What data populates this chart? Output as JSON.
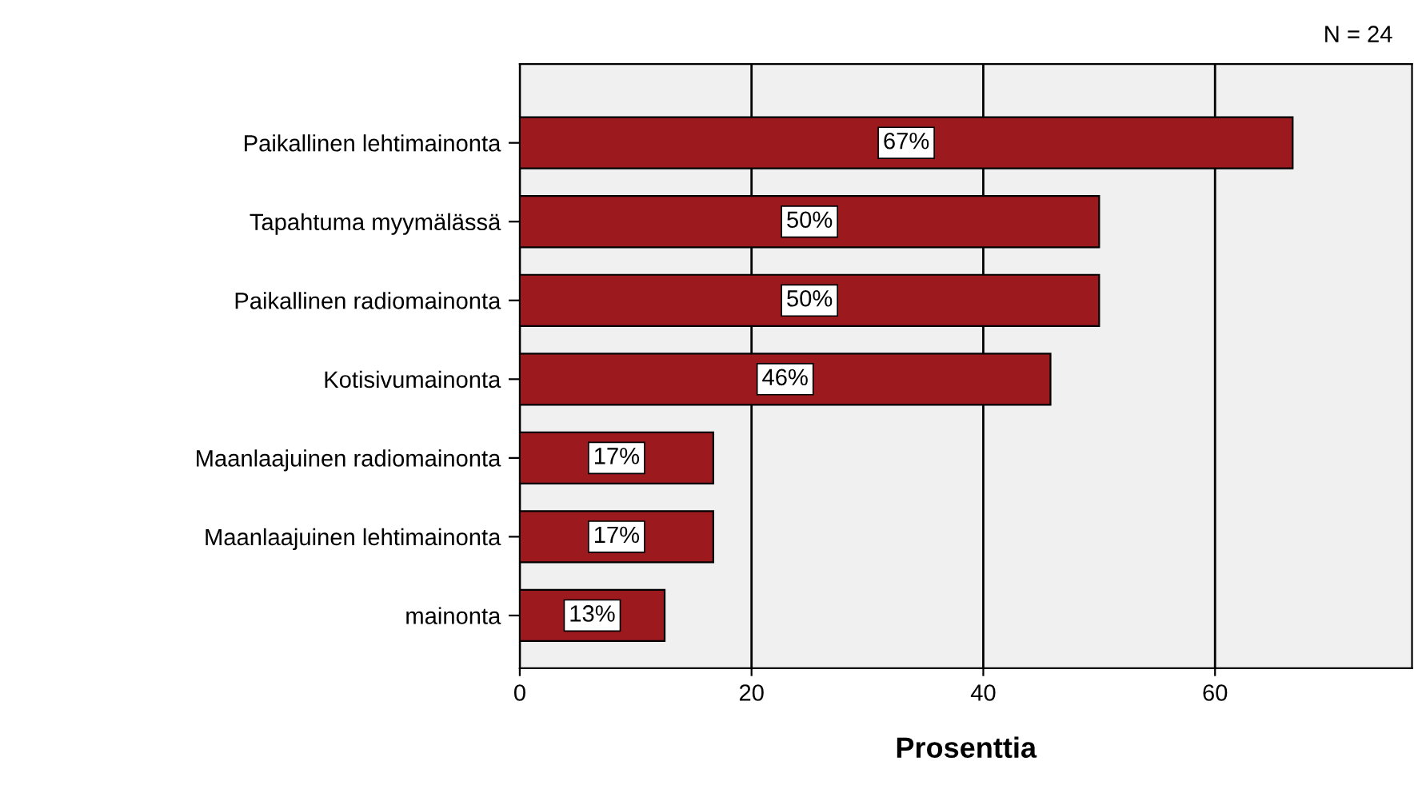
{
  "chart_data": {
    "type": "bar",
    "orientation": "horizontal",
    "categories": [
      "Paikallinen lehtimainonta",
      "Tapahtuma myymälässä",
      "Paikallinen radiomainonta",
      "Kotisivumainonta",
      "Maanlaajuinen radiomainonta",
      "Maanlaajuinen lehtimainonta",
      "mainonta"
    ],
    "values": [
      66.7,
      50,
      50,
      45.8,
      16.7,
      16.7,
      12.5
    ],
    "value_labels": [
      "67%",
      "50%",
      "50%",
      "46%",
      "17%",
      "17%",
      "13%"
    ],
    "color": "#9c1a1e",
    "xlabel": "Prosenttia",
    "annotations": [
      "N = 24"
    ],
    "xlim": [
      0,
      77
    ],
    "xticks": [
      0,
      20,
      40,
      60
    ],
    "grid": "x",
    "legend": false
  }
}
